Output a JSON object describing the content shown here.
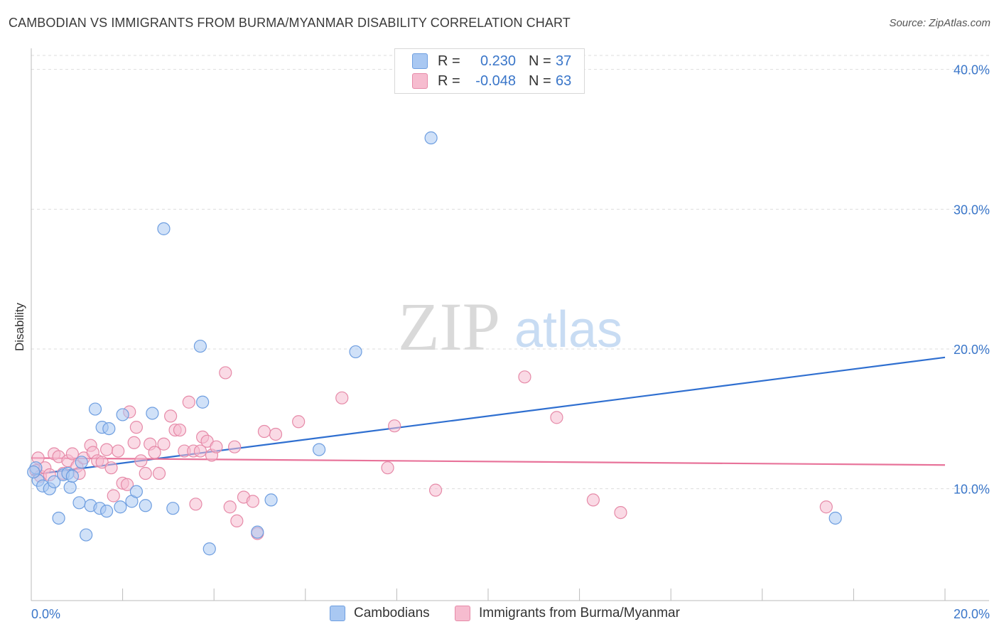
{
  "title": "CAMBODIAN VS IMMIGRANTS FROM BURMA/MYANMAR DISABILITY CORRELATION CHART",
  "source": "Source: ZipAtlas.com",
  "watermark": {
    "zip": "ZIP",
    "atlas": "atlas"
  },
  "colors": {
    "blue_fill": "#a9c8f2",
    "blue_stroke": "#6e9ee0",
    "blue_line": "#2f6fd0",
    "pink_fill": "#f6bccf",
    "pink_stroke": "#e68aa8",
    "pink_line": "#e8739a",
    "tick_text": "#3a76c9",
    "grid": "#dddddd"
  },
  "legend": {
    "rows": [
      {
        "r_label": "R =",
        "r_value": "0.230",
        "n_label": "N =",
        "n_value": "37"
      },
      {
        "r_label": "R =",
        "r_value": "-0.048",
        "n_label": "N =",
        "n_value": "63"
      }
    ]
  },
  "bottom_legend": {
    "series1": "Cambodians",
    "series2": "Immigrants from Burma/Myanmar"
  },
  "chart_data": {
    "type": "scatter",
    "title": "CAMBODIAN VS IMMIGRANTS FROM BURMA/MYANMAR DISABILITY CORRELATION CHART",
    "xlabel": "",
    "ylabel": "Disability",
    "xlim": [
      0,
      20
    ],
    "ylim": [
      2,
      41
    ],
    "x_tick_labels": [
      "0.0%",
      "20.0%"
    ],
    "y_ticks": [
      10,
      20,
      30,
      40
    ],
    "y_tick_labels": [
      "10.0%",
      "20.0%",
      "30.0%",
      "40.0%"
    ],
    "series": [
      {
        "name": "Cambodians",
        "trend": {
          "x": [
            0,
            20
          ],
          "y": [
            11.0,
            19.4
          ]
        },
        "points": [
          [
            0.1,
            11.5
          ],
          [
            0.15,
            10.6
          ],
          [
            0.25,
            10.2
          ],
          [
            0.4,
            10.0
          ],
          [
            0.5,
            10.5
          ],
          [
            0.6,
            7.9
          ],
          [
            0.7,
            11.0
          ],
          [
            0.8,
            11.1
          ],
          [
            0.85,
            10.1
          ],
          [
            0.9,
            10.9
          ],
          [
            1.05,
            9.0
          ],
          [
            1.1,
            11.9
          ],
          [
            1.2,
            6.7
          ],
          [
            1.3,
            8.8
          ],
          [
            1.4,
            15.7
          ],
          [
            1.5,
            8.6
          ],
          [
            1.55,
            14.4
          ],
          [
            1.65,
            8.4
          ],
          [
            1.7,
            14.3
          ],
          [
            1.95,
            8.7
          ],
          [
            2.0,
            15.3
          ],
          [
            2.2,
            9.1
          ],
          [
            2.3,
            9.8
          ],
          [
            2.5,
            8.8
          ],
          [
            2.65,
            15.4
          ],
          [
            2.9,
            28.6
          ],
          [
            3.1,
            8.6
          ],
          [
            3.7,
            20.2
          ],
          [
            3.75,
            16.2
          ],
          [
            3.9,
            5.7
          ],
          [
            4.95,
            6.9
          ],
          [
            5.25,
            9.2
          ],
          [
            6.3,
            12.8
          ],
          [
            7.1,
            19.8
          ],
          [
            8.75,
            35.1
          ],
          [
            17.6,
            7.9
          ],
          [
            0.05,
            11.2
          ]
        ]
      },
      {
        "name": "Immigrants from Burma/Myanmar",
        "trend": {
          "x": [
            0,
            20
          ],
          "y": [
            12.2,
            11.7
          ]
        },
        "points": [
          [
            0.1,
            11.3
          ],
          [
            0.2,
            10.9
          ],
          [
            0.3,
            11.5
          ],
          [
            0.4,
            11.0
          ],
          [
            0.5,
            12.5
          ],
          [
            0.6,
            12.3
          ],
          [
            0.7,
            11.1
          ],
          [
            0.8,
            12.0
          ],
          [
            0.9,
            12.5
          ],
          [
            1.0,
            11.6
          ],
          [
            1.05,
            11.1
          ],
          [
            1.15,
            12.2
          ],
          [
            1.3,
            13.1
          ],
          [
            1.35,
            12.6
          ],
          [
            1.45,
            12.0
          ],
          [
            1.55,
            11.9
          ],
          [
            1.65,
            12.8
          ],
          [
            1.75,
            11.5
          ],
          [
            1.8,
            9.5
          ],
          [
            1.9,
            12.7
          ],
          [
            2.0,
            10.4
          ],
          [
            2.1,
            10.3
          ],
          [
            2.15,
            15.5
          ],
          [
            2.25,
            13.3
          ],
          [
            2.3,
            14.4
          ],
          [
            2.4,
            12.0
          ],
          [
            2.5,
            11.1
          ],
          [
            2.6,
            13.2
          ],
          [
            2.7,
            12.6
          ],
          [
            2.8,
            11.1
          ],
          [
            2.9,
            13.2
          ],
          [
            3.05,
            15.2
          ],
          [
            3.15,
            14.2
          ],
          [
            3.25,
            14.2
          ],
          [
            3.35,
            12.7
          ],
          [
            3.45,
            16.2
          ],
          [
            3.55,
            12.7
          ],
          [
            3.6,
            8.9
          ],
          [
            3.7,
            12.7
          ],
          [
            3.75,
            13.7
          ],
          [
            3.85,
            13.4
          ],
          [
            3.95,
            12.4
          ],
          [
            4.05,
            13.0
          ],
          [
            4.25,
            18.3
          ],
          [
            4.35,
            8.7
          ],
          [
            4.45,
            13.0
          ],
          [
            4.5,
            7.7
          ],
          [
            4.65,
            9.4
          ],
          [
            4.85,
            9.1
          ],
          [
            4.95,
            6.8
          ],
          [
            5.1,
            14.1
          ],
          [
            5.35,
            13.9
          ],
          [
            5.85,
            14.8
          ],
          [
            6.8,
            16.5
          ],
          [
            7.8,
            11.5
          ],
          [
            7.95,
            14.5
          ],
          [
            8.85,
            9.9
          ],
          [
            10.8,
            18.0
          ],
          [
            11.5,
            15.1
          ],
          [
            12.3,
            9.2
          ],
          [
            12.9,
            8.3
          ],
          [
            17.4,
            8.7
          ],
          [
            0.15,
            12.2
          ]
        ]
      }
    ]
  }
}
